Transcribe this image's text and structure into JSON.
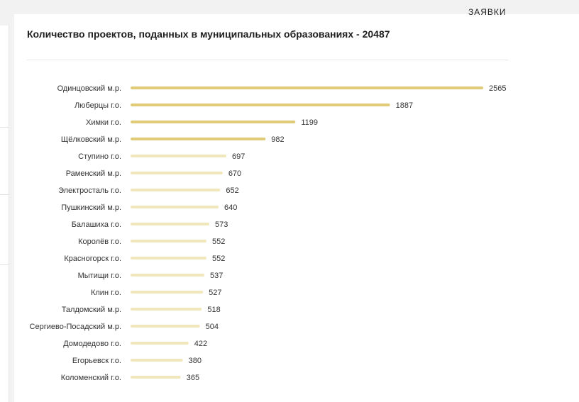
{
  "header": {
    "title": "Количество проектов, поданных в муниципальных образованиях - 20487",
    "top_fragment": "ЗАЯВКИ"
  },
  "chart_data": {
    "type": "bar",
    "orientation": "horizontal",
    "title": "Количество проектов, поданных в муниципальных образованиях - 20487",
    "categories": [
      "Одинцовский м.р.",
      "Люберцы г.о.",
      "Химки г.о.",
      "Щёлковский м.р.",
      "Ступино г.о.",
      "Раменский м.р.",
      "Электросталь г.о.",
      "Пушкинский м.р.",
      "Балашиха г.о.",
      "Королёв г.о.",
      "Красногорск г.о.",
      "Мытищи г.о.",
      "Клин г.о.",
      "Талдомский м.р.",
      "Сергиево-Посадский м.р.",
      "Домодедово г.о.",
      "Егорьевск г.о.",
      "Коломенский г.о."
    ],
    "values": [
      2565,
      1887,
      1199,
      982,
      697,
      670,
      652,
      640,
      573,
      552,
      552,
      537,
      527,
      518,
      504,
      422,
      380,
      365
    ],
    "xlim": [
      0,
      2565
    ],
    "grid": false,
    "legend": "none",
    "colors": {
      "strong": "#e0cc78",
      "light": "#f1e7bc"
    }
  }
}
